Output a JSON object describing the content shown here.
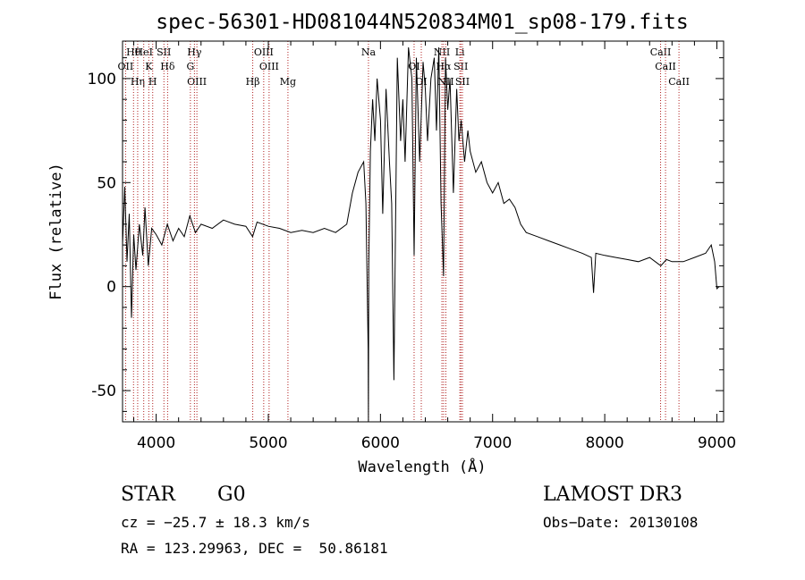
{
  "chart_data": {
    "type": "line",
    "title": "spec-56301-HD081044N520834M01_sp08-179.fits",
    "xlabel": "Wavelength (Å)",
    "ylabel": "Flux (relative)",
    "xlim": [
      3700,
      9060
    ],
    "ylim": [
      -65,
      118
    ],
    "xticks": [
      4000,
      5000,
      6000,
      7000,
      8000,
      9000
    ],
    "yticks": [
      -50,
      0,
      50,
      100
    ],
    "grid": false,
    "series": [
      {
        "color": "#000000",
        "x": [
          3700,
          3720,
          3740,
          3760,
          3780,
          3800,
          3820,
          3850,
          3880,
          3900,
          3930,
          3960,
          4000,
          4050,
          4100,
          4150,
          4200,
          4250,
          4300,
          4350,
          4400,
          4500,
          4600,
          4700,
          4800,
          4860,
          4900,
          5000,
          5100,
          5200,
          5300,
          5400,
          5500,
          5600,
          5700,
          5750,
          5800,
          5850,
          5870,
          5890,
          5893,
          5896,
          5910,
          5930,
          5950,
          5970,
          6000,
          6020,
          6050,
          6080,
          6100,
          6120,
          6150,
          6180,
          6200,
          6220,
          6250,
          6280,
          6300,
          6320,
          6350,
          6380,
          6400,
          6420,
          6450,
          6480,
          6500,
          6520,
          6540,
          6563,
          6580,
          6600,
          6620,
          6650,
          6680,
          6700,
          6720,
          6750,
          6780,
          6800,
          6850,
          6900,
          6950,
          7000,
          7050,
          7100,
          7150,
          7200,
          7250,
          7300,
          7400,
          7500,
          7600,
          7700,
          7800,
          7880,
          7900,
          7920,
          8000,
          8100,
          8200,
          8300,
          8400,
          8500,
          8550,
          8600,
          8700,
          8800,
          8900,
          8950,
          8980,
          9000,
          9020
        ],
        "y": [
          20,
          48,
          12,
          35,
          -15,
          25,
          8,
          30,
          15,
          38,
          10,
          28,
          25,
          20,
          30,
          22,
          28,
          24,
          34,
          26,
          30,
          28,
          32,
          30,
          29,
          24,
          31,
          29,
          28,
          26,
          27,
          26,
          28,
          26,
          30,
          45,
          55,
          60,
          40,
          -30,
          -65,
          10,
          65,
          90,
          70,
          100,
          80,
          35,
          95,
          60,
          40,
          -45,
          110,
          70,
          90,
          60,
          115,
          100,
          15,
          110,
          60,
          108,
          95,
          70,
          100,
          110,
          75,
          115,
          40,
          5,
          110,
          85,
          100,
          45,
          95,
          70,
          80,
          60,
          75,
          65,
          55,
          60,
          50,
          45,
          50,
          40,
          42,
          38,
          30,
          26,
          24,
          22,
          20,
          18,
          16,
          14,
          -3,
          16,
          15,
          14,
          13,
          12,
          14,
          10,
          13,
          12,
          12,
          14,
          16,
          20,
          12,
          -1,
          0
        ]
      }
    ],
    "line_markers": [
      {
        "label": "Hθ",
        "x": 3798
      },
      {
        "label": "OII",
        "x": 3727
      },
      {
        "label": "Hη",
        "x": 3835
      },
      {
        "label": "HeI",
        "x": 3889
      },
      {
        "label": "K",
        "x": 3934
      },
      {
        "label": "H",
        "x": 3969
      },
      {
        "label": "SII",
        "x": 4069
      },
      {
        "label": "Hδ",
        "x": 4102
      },
      {
        "label": "OIII",
        "x": 4363
      },
      {
        "label": "Hγ",
        "x": 4341
      },
      {
        "label": "G",
        "x": 4305
      },
      {
        "label": "Hβ",
        "x": 4861
      },
      {
        "label": "OIII",
        "x": 4959
      },
      {
        "label": "OIII",
        "x": 5007
      },
      {
        "label": "Mg",
        "x": 5175
      },
      {
        "label": "Na",
        "x": 5893
      },
      {
        "label": "OI",
        "x": 6300
      },
      {
        "label": "OI",
        "x": 6364
      },
      {
        "label": "NII",
        "x": 6548
      },
      {
        "label": "Hα",
        "x": 6563
      },
      {
        "label": "NII",
        "x": 6583
      },
      {
        "label": "Li",
        "x": 6708
      },
      {
        "label": "SII",
        "x": 6717
      },
      {
        "label": "SII",
        "x": 6731
      },
      {
        "label": "CaII",
        "x": 8498
      },
      {
        "label": "CaII",
        "x": 8542
      },
      {
        "label": "CaII",
        "x": 8662
      }
    ]
  },
  "info": {
    "class": "STAR",
    "subclass": "G0",
    "survey": "LAMOST DR3",
    "cz": "cz = −25.7 ± 18.3 km/s",
    "obs_date": "Obs−Date: 20130108",
    "radec": "RA = 123.29963, DEC =  50.86181"
  }
}
